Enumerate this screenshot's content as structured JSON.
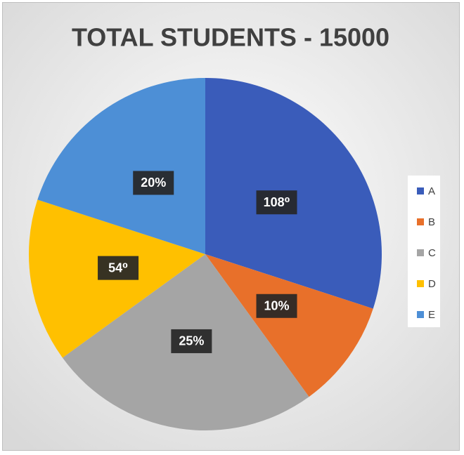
{
  "chart_data": {
    "type": "pie",
    "title": "TOTAL STUDENTS - 15000",
    "categories": [
      "A",
      "B",
      "C",
      "D",
      "E"
    ],
    "values": [
      30,
      10,
      25,
      15,
      20
    ],
    "value_labels": [
      "108⁰",
      "10%",
      "25%",
      "54⁰",
      "20%"
    ],
    "colors": [
      "#3a5cba",
      "#e8702a",
      "#a5a5a5",
      "#ffc000",
      "#4d8fd6"
    ],
    "legend": "right"
  }
}
